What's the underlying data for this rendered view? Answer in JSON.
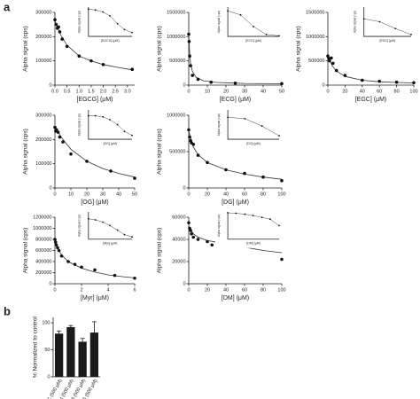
{
  "panels": [
    "a",
    "b"
  ],
  "chart_data": [
    {
      "type": "scatter",
      "xlabel": "[EGCG] (μM)",
      "ylabel": "Alpha signal (cps)",
      "xlim": [
        0,
        3.3
      ],
      "xticks": [
        {
          "value": 0,
          "label": "0.0"
        },
        {
          "value": 0.5,
          "label": "0.5"
        },
        {
          "value": 1,
          "label": "1.0"
        },
        {
          "value": 1.5,
          "label": "1.5"
        },
        {
          "value": 2,
          "label": "2.0"
        },
        {
          "value": 2.5,
          "label": "2.5"
        },
        {
          "value": 3,
          "label": "3.0"
        }
      ],
      "ylim": [
        0,
        300000
      ],
      "yticks": [
        0,
        100000,
        200000,
        300000
      ],
      "x": [
        0,
        0.05,
        0.1,
        0.15,
        0.2,
        0.3,
        0.5,
        1,
        1.5,
        2,
        3.2
      ],
      "values": [
        270000,
        250000,
        235000,
        240000,
        220000,
        190000,
        160000,
        120000,
        100000,
        85000,
        65000
      ],
      "fit_x": [
        0,
        0.1,
        0.25,
        0.5,
        1,
        1.5,
        2,
        2.5,
        3.2
      ],
      "fit_values": [
        265000,
        240000,
        205000,
        165000,
        120000,
        100000,
        85000,
        75000,
        63000
      ],
      "inset": {
        "type": "line",
        "log_x": true,
        "xlabel": "[EGCG] (μM)",
        "ylabel": "Alpha signal (cps)",
        "xlim": [
          0.01,
          10
        ],
        "ylim": [
          0,
          300000
        ],
        "x": [
          0.01,
          0.03,
          0.1,
          0.3,
          1,
          3,
          10
        ],
        "values": [
          280000,
          270000,
          250000,
          210000,
          130000,
          70000,
          40000
        ]
      }
    },
    {
      "type": "scatter",
      "xlabel": "[ECG] (μM)",
      "ylabel": "Alpha signal (cps)",
      "xlim": [
        0,
        50
      ],
      "xticks": [
        0,
        10,
        20,
        30,
        40,
        50
      ],
      "ylim": [
        0,
        1500000
      ],
      "yticks": [
        0,
        500000,
        1000000,
        1500000
      ],
      "x": [
        0,
        0.2,
        0.5,
        1,
        2,
        5,
        12,
        25,
        50
      ],
      "values": [
        1050000,
        900000,
        600000,
        400000,
        200000,
        120000,
        60000,
        40000,
        30000
      ],
      "fit_x": [
        0,
        0.5,
        1,
        2,
        4,
        8,
        15,
        30,
        50
      ],
      "fit_values": [
        1050000,
        650000,
        450000,
        280000,
        160000,
        90000,
        55000,
        35000,
        28000
      ],
      "inset": {
        "type": "line",
        "log_x": true,
        "xlabel": "[ECG] (μM)",
        "ylabel": "Alpha signal (cps)",
        "xlim": [
          0.01,
          100
        ],
        "ylim": [
          0,
          1500000
        ],
        "x": [
          0.01,
          0.1,
          1,
          10,
          100
        ],
        "values": [
          1300000,
          1100000,
          500000,
          100000,
          30000
        ]
      }
    },
    {
      "type": "scatter",
      "xlabel": "[EGC] (μM)",
      "ylabel": "Alpha signal (cps)",
      "xlim": [
        0,
        100
      ],
      "xticks": [
        0,
        20,
        40,
        60,
        80,
        100
      ],
      "ylim": [
        0,
        1500000
      ],
      "yticks": [
        0,
        500000,
        1000000,
        1500000
      ],
      "x": [
        0,
        1,
        2,
        4,
        6,
        10,
        20,
        40,
        60,
        80,
        100
      ],
      "values": [
        600000,
        550000,
        500000,
        560000,
        450000,
        300000,
        200000,
        100000,
        80000,
        60000,
        50000
      ],
      "fit_x": [
        0,
        2,
        5,
        10,
        20,
        40,
        60,
        80,
        100
      ],
      "fit_values": [
        620000,
        520000,
        400000,
        290000,
        180000,
        100000,
        70000,
        55000,
        45000
      ],
      "inset": {
        "type": "line",
        "log_x": true,
        "xlabel": "[EGC] (μM)",
        "ylabel": "Alpha signal (cps)",
        "xlim": [
          0.1,
          100
        ],
        "ylim": [
          0,
          1500000
        ],
        "x": [
          0.1,
          1,
          10,
          100
        ],
        "values": [
          900000,
          750000,
          400000,
          100000
        ]
      }
    },
    {
      "type": "scatter",
      "xlabel": "[OG] (μM)",
      "ylabel": "Alpha signal (cps)",
      "xlim": [
        0,
        50
      ],
      "xticks": [
        0,
        10,
        20,
        30,
        40,
        50
      ],
      "ylim": [
        0,
        300000
      ],
      "yticks": [
        0,
        100000,
        200000,
        300000
      ],
      "x": [
        0,
        0.5,
        1,
        2,
        3,
        5,
        10,
        20,
        35,
        50
      ],
      "values": [
        250000,
        235000,
        240000,
        230000,
        210000,
        190000,
        140000,
        110000,
        70000,
        40000
      ],
      "fit_x": [
        0,
        2,
        5,
        10,
        20,
        30,
        40,
        50
      ],
      "fit_values": [
        250000,
        230000,
        200000,
        160000,
        110000,
        80000,
        60000,
        45000
      ],
      "inset": {
        "type": "line",
        "log_x": true,
        "xlabel": "[OG] (μM)",
        "ylabel": "Alpha signal (cps)",
        "xlim": [
          0.1,
          100
        ],
        "ylim": [
          0,
          300000
        ],
        "x": [
          0.1,
          0.3,
          1,
          3,
          10,
          30,
          100
        ],
        "values": [
          240000,
          240000,
          230000,
          200000,
          150000,
          80000,
          40000
        ]
      }
    },
    {
      "type": "scatter",
      "xlabel": "[DG] (μM)",
      "ylabel": "Alpha signal (cps)",
      "xlim": [
        0,
        100
      ],
      "xticks": [
        0,
        20,
        40,
        60,
        80,
        100
      ],
      "ylim": [
        0,
        1000000
      ],
      "yticks": [
        0,
        500000,
        1000000
      ],
      "x": [
        0,
        1,
        2,
        3,
        5,
        10,
        20,
        40,
        60,
        80,
        100
      ],
      "values": [
        800000,
        700000,
        650000,
        620000,
        600000,
        450000,
        350000,
        250000,
        200000,
        150000,
        100000
      ],
      "fit_x": [
        0,
        5,
        10,
        20,
        40,
        60,
        80,
        100
      ],
      "fit_values": [
        780000,
        560000,
        460000,
        350000,
        250000,
        190000,
        150000,
        120000
      ],
      "inset": {
        "type": "line",
        "log_x": true,
        "xlabel": "[DG] (μM)",
        "ylabel": "Alpha signal (cps)",
        "xlim": [
          0.1,
          100
        ],
        "ylim": [
          0,
          1000000
        ],
        "x": [
          0.1,
          1,
          10,
          100
        ],
        "values": [
          750000,
          700000,
          450000,
          120000
        ]
      }
    },
    {
      "type": "scatter",
      "xlabel": "[Myr] (μM)",
      "ylabel": "Alpha signal (cps)",
      "xlim": [
        0,
        6
      ],
      "xticks": [
        0,
        2,
        4,
        6
      ],
      "ylim": [
        0,
        1200000
      ],
      "yticks": [
        0,
        200000,
        400000,
        600000,
        800000,
        1000000,
        1200000
      ],
      "x": [
        0,
        0.05,
        0.1,
        0.2,
        0.3,
        0.5,
        1,
        1.5,
        2,
        3,
        4.5,
        6
      ],
      "values": [
        800000,
        750000,
        700000,
        650000,
        600000,
        500000,
        400000,
        350000,
        300000,
        250000,
        150000,
        100000
      ],
      "fit_x": [
        0,
        0.25,
        0.5,
        1,
        2,
        3,
        4,
        5,
        6
      ],
      "fit_values": [
        780000,
        620000,
        520000,
        400000,
        280000,
        210000,
        160000,
        130000,
        105000
      ],
      "inset": {
        "type": "line",
        "log_x": true,
        "xlabel": "[Myr] (μM)",
        "ylabel": "Alpha signal (cps)",
        "xlim": [
          0.01,
          10
        ],
        "ylim": [
          0,
          1200000
        ],
        "x": [
          0.01,
          0.03,
          0.1,
          0.3,
          1,
          3,
          10
        ],
        "values": [
          900000,
          850000,
          750000,
          600000,
          400000,
          200000,
          100000
        ]
      }
    },
    {
      "type": "scatter",
      "xlabel": "[DM] (μM)",
      "ylabel": "Alpha signal (cps)",
      "xlim": [
        0,
        100
      ],
      "xticks": [
        0,
        20,
        40,
        60,
        80,
        100
      ],
      "ylim": [
        0,
        60000
      ],
      "yticks": [
        0,
        20000,
        40000,
        60000
      ],
      "x": [
        0,
        1,
        2,
        3,
        5,
        10,
        20,
        25,
        50,
        100
      ],
      "values": [
        55000,
        50000,
        48000,
        45000,
        42000,
        40000,
        38000,
        35000,
        35000,
        22000
      ],
      "fit_x": [
        0,
        5,
        10,
        20,
        40,
        60,
        80,
        100
      ],
      "fit_values": [
        52000,
        45000,
        42000,
        39000,
        36000,
        33000,
        30000,
        28000
      ],
      "inset": {
        "type": "line",
        "log_x": true,
        "xlabel": "[DM] (μM)",
        "ylabel": "Alpha signal (cps)",
        "xlim": [
          0.1,
          100
        ],
        "ylim": [
          0,
          60000
        ],
        "x": [
          0.1,
          0.3,
          1,
          3,
          10,
          30,
          100
        ],
        "values": [
          58000,
          57000,
          55000,
          52000,
          48000,
          44000,
          30000
        ]
      }
    },
    {
      "type": "bar",
      "ylabel": "% Normalized to control",
      "color": "#1a1a1a",
      "categories": [
        "EC (500 μM)",
        "Cat (500 μM)",
        "GA (500 μM)",
        "PG (500 μM)"
      ],
      "values": [
        80,
        92,
        65,
        82
      ],
      "errors": [
        5,
        3,
        6,
        20
      ],
      "ylim": [
        0,
        110
      ],
      "yticks": [
        0,
        50,
        100
      ]
    }
  ]
}
